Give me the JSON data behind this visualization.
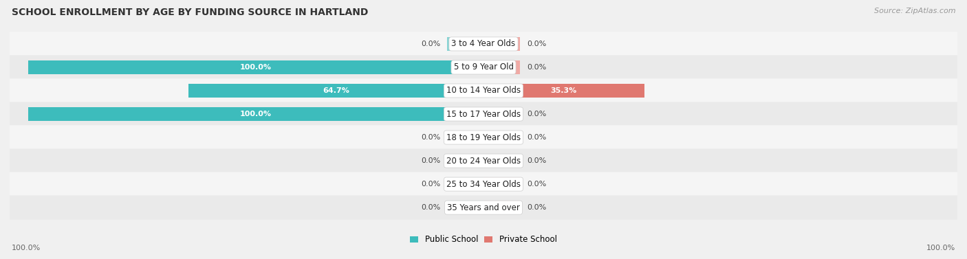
{
  "title": "SCHOOL ENROLLMENT BY AGE BY FUNDING SOURCE IN HARTLAND",
  "source": "Source: ZipAtlas.com",
  "categories": [
    "3 to 4 Year Olds",
    "5 to 9 Year Old",
    "10 to 14 Year Olds",
    "15 to 17 Year Olds",
    "18 to 19 Year Olds",
    "20 to 24 Year Olds",
    "25 to 34 Year Olds",
    "35 Years and over"
  ],
  "public_values": [
    0.0,
    100.0,
    64.7,
    100.0,
    0.0,
    0.0,
    0.0,
    0.0
  ],
  "private_values": [
    0.0,
    0.0,
    35.3,
    0.0,
    0.0,
    0.0,
    0.0,
    0.0
  ],
  "public_color": "#3dbcbc",
  "private_color": "#e07870",
  "public_color_light": "#88d4d4",
  "private_color_light": "#f0aaa5",
  "row_color_odd": "#f5f5f5",
  "row_color_even": "#eaeaea",
  "title_fontsize": 10,
  "source_fontsize": 8,
  "label_fontsize": 8.5,
  "value_fontsize": 8,
  "axis_label_fontsize": 8,
  "max_value": 100.0,
  "stub_value": 8.0,
  "x_left_label": "100.0%",
  "x_right_label": "100.0%",
  "bg_color": "#f0f0f0"
}
